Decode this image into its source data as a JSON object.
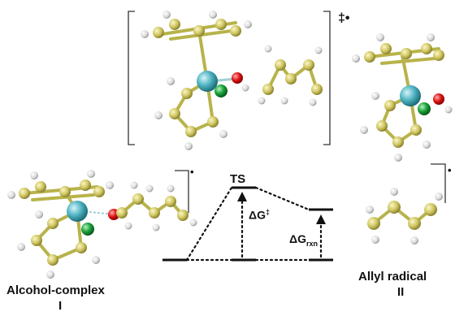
{
  "labels": {
    "ts": "TS",
    "dg_ts": "ΔG‡",
    "dg_rxn": "ΔGrxn",
    "dg_rxn_main": "ΔG",
    "dg_rxn_sub": "rxn",
    "dg_ts_main": "ΔG",
    "dg_ts_sup": "‡",
    "bracket_mark": "‡•",
    "complex_name": "Alcohol-complex",
    "complex_id": "I",
    "radical_name": "Allyl radical",
    "radical_id": "II",
    "radical_dot": "•"
  },
  "colors": {
    "carbon": "#c8c15a",
    "hydrogen": "#e6e6e6",
    "metal": "#4fb3c2",
    "oxygen": "#e01515",
    "chlorine": "#1aa33a",
    "bond": "#b8b34a",
    "line": "#111111"
  },
  "diagram": {
    "levels": [
      "Alcohol-complex",
      "TS",
      "Allyl radical"
    ],
    "arrows": [
      "ΔG‡",
      "ΔGrxn"
    ]
  }
}
